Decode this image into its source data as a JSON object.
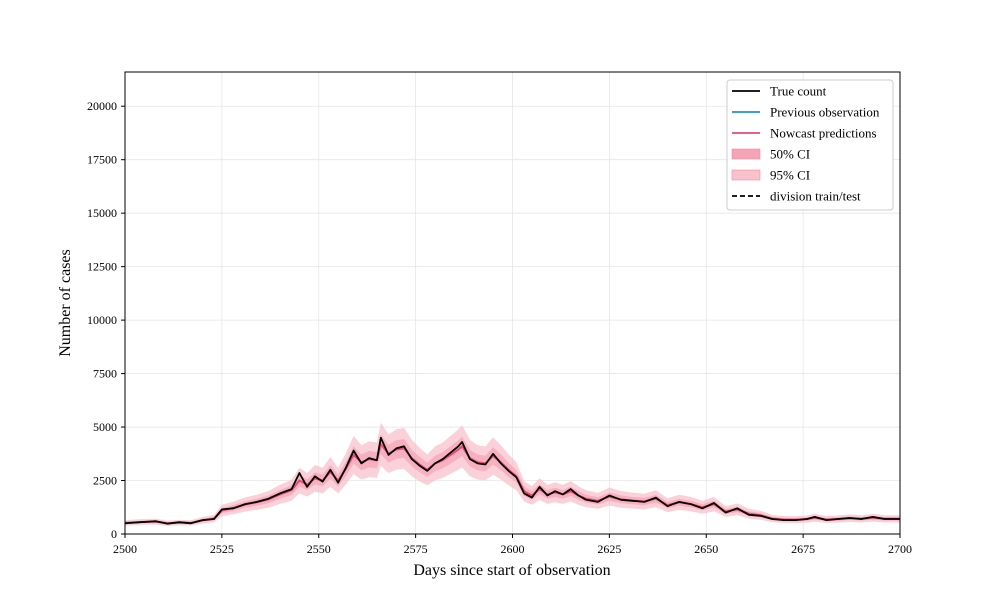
{
  "chart_data": {
    "type": "line",
    "xlabel": "Days since start of observation",
    "ylabel": "Number of cases",
    "xlim": [
      2500,
      2700
    ],
    "ylim": [
      0,
      21600
    ],
    "xticks": [
      2500,
      2525,
      2550,
      2575,
      2600,
      2625,
      2650,
      2675,
      2700
    ],
    "yticks": [
      0,
      2500,
      5000,
      7500,
      10000,
      12500,
      15000,
      17500,
      20000
    ],
    "grid": true,
    "legend_position": "upper right",
    "legend": [
      {
        "label": "True count",
        "kind": "line",
        "color": "#000000",
        "dash": "solid"
      },
      {
        "label": "Previous observation",
        "kind": "line",
        "color": "#1f8fd8",
        "dash": "solid"
      },
      {
        "label": "Nowcast predictions",
        "kind": "line",
        "color": "#e84a72",
        "dash": "solid"
      },
      {
        "label": "50% CI",
        "kind": "patch",
        "color": "#f5a3b5",
        "dash": "solid"
      },
      {
        "label": "95% CI",
        "kind": "patch",
        "color": "#f8c1cc",
        "dash": "solid"
      },
      {
        "label": "division train/test",
        "kind": "line",
        "color": "#000000",
        "dash": "dashed"
      }
    ],
    "x": [
      2500,
      2504,
      2508,
      2511,
      2514,
      2517,
      2520,
      2523,
      2525,
      2528,
      2531,
      2534,
      2537,
      2540,
      2543,
      2545,
      2547,
      2549,
      2551,
      2553,
      2555,
      2557,
      2559,
      2561,
      2563,
      2565,
      2566,
      2568,
      2570,
      2572,
      2574,
      2576,
      2578,
      2580,
      2582,
      2584,
      2586,
      2587,
      2589,
      2591,
      2593,
      2595,
      2597,
      2599,
      2601,
      2603,
      2605,
      2607,
      2609,
      2611,
      2613,
      2615,
      2617,
      2619,
      2622,
      2625,
      2628,
      2631,
      2634,
      2637,
      2640,
      2643,
      2646,
      2649,
      2652,
      2655,
      2658,
      2661,
      2664,
      2667,
      2670,
      2673,
      2676,
      2678,
      2681,
      2684,
      2687,
      2690,
      2693,
      2696,
      2700
    ],
    "series": [
      {
        "name": "True count",
        "color": "#000000",
        "values": [
          500,
          550,
          600,
          480,
          550,
          500,
          650,
          700,
          1150,
          1200,
          1400,
          1500,
          1650,
          1900,
          2100,
          2850,
          2200,
          2700,
          2450,
          3000,
          2400,
          3100,
          3900,
          3300,
          3550,
          3450,
          4500,
          3700,
          4000,
          4100,
          3500,
          3200,
          2950,
          3300,
          3500,
          3800,
          4100,
          4300,
          3500,
          3300,
          3250,
          3750,
          3300,
          2950,
          2650,
          1900,
          1700,
          2200,
          1800,
          2000,
          1850,
          2100,
          1800,
          1600,
          1500,
          1800,
          1600,
          1550,
          1500,
          1700,
          1300,
          1500,
          1400,
          1200,
          1450,
          1000,
          1200,
          900,
          850,
          700,
          650,
          650,
          700,
          800,
          650,
          700,
          750,
          700,
          800,
          700,
          700
        ]
      },
      {
        "name": "Nowcast predictions",
        "color": "#e84a72",
        "values": [
          520,
          560,
          580,
          500,
          540,
          520,
          640,
          720,
          1100,
          1220,
          1380,
          1480,
          1620,
          1850,
          2050,
          2500,
          2300,
          2600,
          2500,
          2900,
          2500,
          3050,
          3700,
          3350,
          3500,
          3450,
          4200,
          3750,
          3950,
          4000,
          3550,
          3250,
          3000,
          3300,
          3450,
          3700,
          3950,
          4100,
          3550,
          3350,
          3300,
          3650,
          3350,
          3000,
          2700,
          2000,
          1800,
          2100,
          1850,
          1950,
          1850,
          2000,
          1800,
          1650,
          1550,
          1750,
          1620,
          1560,
          1520,
          1650,
          1350,
          1480,
          1400,
          1250,
          1400,
          1050,
          1150,
          950,
          880,
          720,
          680,
          670,
          700,
          760,
          680,
          700,
          740,
          710,
          760,
          710,
          710
        ]
      }
    ]
  }
}
